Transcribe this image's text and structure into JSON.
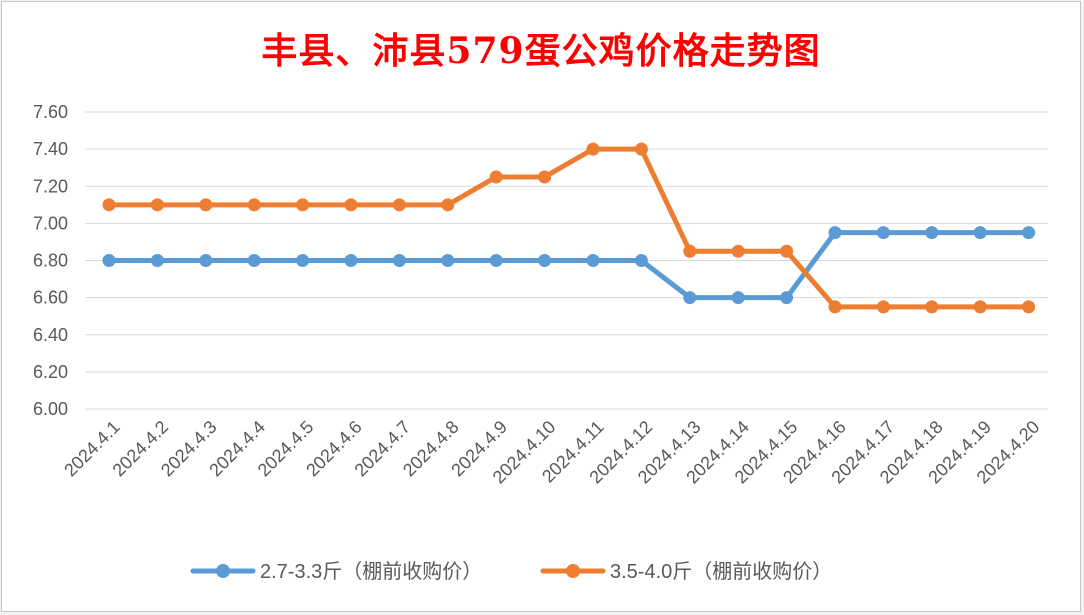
{
  "chart_data": {
    "type": "line",
    "title": "丰县、沛县579蛋公鸡价格走势图",
    "categories": [
      "2024.4.1",
      "2024.4.2",
      "2024.4.3",
      "2024.4.4",
      "2024.4.5",
      "2024.4.6",
      "2024.4.7",
      "2024.4.8",
      "2024.4.9",
      "2024.4.10",
      "2024.4.11",
      "2024.4.12",
      "2024.4.13",
      "2024.4.14",
      "2024.4.15",
      "2024.4.16",
      "2024.4.17",
      "2024.4.18",
      "2024.4.19",
      "2024.4.20"
    ],
    "y_ticks": [
      "6.00",
      "6.20",
      "6.40",
      "6.60",
      "6.80",
      "7.00",
      "7.20",
      "7.40",
      "7.60"
    ],
    "ylim": [
      6.0,
      7.6
    ],
    "grid": true,
    "legend_position": "bottom",
    "series": [
      {
        "name": "2.7-3.3斤（棚前收购价）",
        "color": "#5b9bd5",
        "values": [
          6.8,
          6.8,
          6.8,
          6.8,
          6.8,
          6.8,
          6.8,
          6.8,
          6.8,
          6.8,
          6.8,
          6.8,
          6.6,
          6.6,
          6.6,
          6.95,
          6.95,
          6.95,
          6.95,
          6.95
        ]
      },
      {
        "name": "3.5-4.0斤（棚前收购价）",
        "color": "#ed7d31",
        "values": [
          7.1,
          7.1,
          7.1,
          7.1,
          7.1,
          7.1,
          7.1,
          7.1,
          7.25,
          7.25,
          7.4,
          7.4,
          6.85,
          6.85,
          6.85,
          6.55,
          6.55,
          6.55,
          6.55,
          6.55
        ]
      }
    ]
  }
}
